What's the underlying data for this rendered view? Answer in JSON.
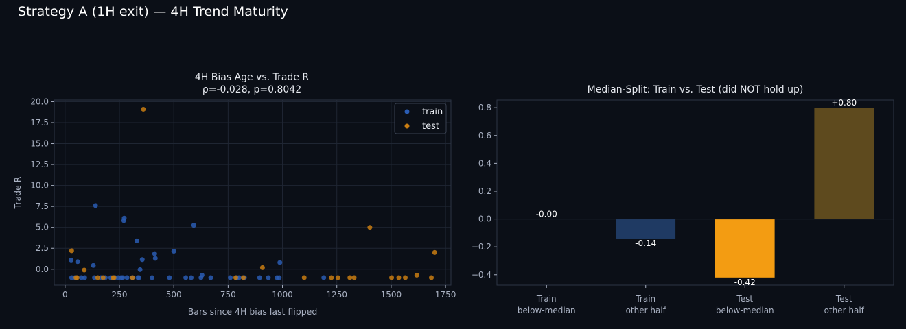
{
  "suptitle": "Strategy A (1H exit) — 4H Trend Maturity",
  "colors": {
    "background": "#0b0f17",
    "axes_face": "#0b0f17",
    "spine": "#2c3444",
    "grid": "#1f2633",
    "train": "#2a5cb3",
    "test": "#c97d12",
    "bar_train_other": "#1f3a63",
    "bar_test_below": "#f39c12",
    "bar_test_other": "#5e4a1e"
  },
  "chart_data": [
    {
      "type": "scatter",
      "title": "4H Bias Age vs. Trade R",
      "subtitle": "ρ=-0.028, p=0.8042",
      "xlabel": "Bars since 4H bias last flipped",
      "ylabel": "Trade R",
      "xlim": [
        -50,
        1775
      ],
      "ylim": [
        -1.9,
        20.2
      ],
      "xticks": [
        0,
        250,
        500,
        750,
        1000,
        1250,
        1500,
        1750
      ],
      "xtick_labels": [
        "0",
        "250",
        "500",
        "750",
        "1000",
        "1250",
        "1500",
        "1750"
      ],
      "yticks": [
        0,
        2.5,
        5,
        7.5,
        10,
        12.5,
        15,
        17.5,
        20
      ],
      "ytick_labels": [
        "0.0",
        "2.5",
        "5.0",
        "7.5",
        "10.0",
        "12.5",
        "15.0",
        "17.5",
        "20.0"
      ],
      "grid": true,
      "legend": {
        "placement": "upper-right",
        "entries": [
          "train",
          "test"
        ]
      },
      "series": [
        {
          "name": "train",
          "points": [
            [
              28,
              1.1
            ],
            [
              30,
              -1.0
            ],
            [
              45,
              -1.0
            ],
            [
              58,
              0.9
            ],
            [
              75,
              -1.0
            ],
            [
              90,
              -1.0
            ],
            [
              130,
              0.45
            ],
            [
              135,
              -1.0
            ],
            [
              140,
              7.6
            ],
            [
              165,
              -1.0
            ],
            [
              185,
              -1.0
            ],
            [
              210,
              -1.0
            ],
            [
              230,
              -1.0
            ],
            [
              245,
              -1.0
            ],
            [
              258,
              -1.0
            ],
            [
              265,
              -1.0
            ],
            [
              270,
              5.8
            ],
            [
              272,
              6.1
            ],
            [
              285,
              -1.0
            ],
            [
              310,
              -1.0
            ],
            [
              330,
              3.4
            ],
            [
              335,
              -1.0
            ],
            [
              340,
              -1.0
            ],
            [
              345,
              -0.05
            ],
            [
              355,
              1.15
            ],
            [
              400,
              -1.0
            ],
            [
              412,
              1.85
            ],
            [
              415,
              1.3
            ],
            [
              480,
              -1.0
            ],
            [
              500,
              2.15
            ],
            [
              555,
              -1.0
            ],
            [
              580,
              -1.0
            ],
            [
              592,
              5.25
            ],
            [
              625,
              -1.0
            ],
            [
              630,
              -0.7
            ],
            [
              670,
              -1.0
            ],
            [
              760,
              -1.0
            ],
            [
              790,
              -1.0
            ],
            [
              800,
              -1.0
            ],
            [
              825,
              -1.0
            ],
            [
              895,
              -1.0
            ],
            [
              935,
              -1.0
            ],
            [
              975,
              -1.0
            ],
            [
              985,
              -1.0
            ],
            [
              988,
              0.8
            ],
            [
              1190,
              -1.0
            ]
          ]
        },
        {
          "name": "test",
          "points": [
            [
              30,
              2.2
            ],
            [
              50,
              -1.0
            ],
            [
              55,
              -1.0
            ],
            [
              88,
              -0.1
            ],
            [
              150,
              -1.0
            ],
            [
              175,
              -1.0
            ],
            [
              220,
              -1.0
            ],
            [
              225,
              -1.0
            ],
            [
              310,
              -1.0
            ],
            [
              360,
              19.1
            ],
            [
              785,
              -1.0
            ],
            [
              820,
              -1.0
            ],
            [
              908,
              0.2
            ],
            [
              1100,
              -1.0
            ],
            [
              1225,
              -1.0
            ],
            [
              1255,
              -1.0
            ],
            [
              1310,
              -1.0
            ],
            [
              1330,
              -1.0
            ],
            [
              1402,
              5.0
            ],
            [
              1502,
              -1.0
            ],
            [
              1535,
              -1.0
            ],
            [
              1565,
              -1.0
            ],
            [
              1618,
              -0.7
            ],
            [
              1685,
              -1.0
            ],
            [
              1700,
              2.0
            ]
          ]
        }
      ]
    },
    {
      "type": "bar",
      "title": "Median-Split: Train vs. Test (did NOT hold up)",
      "categories": [
        "Train\nbelow-median",
        "Train\nother half",
        "Test\nbelow-median",
        "Test\nother half"
      ],
      "values": [
        -0.0,
        -0.14,
        -0.42,
        0.8
      ],
      "value_labels": [
        "-0.00",
        "-0.14",
        "-0.42",
        "+0.80"
      ],
      "ylim": [
        -0.475,
        0.855
      ],
      "yticks": [
        -0.4,
        -0.2,
        0.0,
        0.2,
        0.4,
        0.6,
        0.8
      ],
      "ytick_labels": [
        "−0.4",
        "−0.2",
        "0.0",
        "0.2",
        "0.4",
        "0.6",
        "0.8"
      ],
      "bar_colors": [
        "#1f3a63",
        "#1f3a63",
        "#f39c12",
        "#5e4a1e"
      ],
      "zero_line": true,
      "grid": false
    }
  ]
}
